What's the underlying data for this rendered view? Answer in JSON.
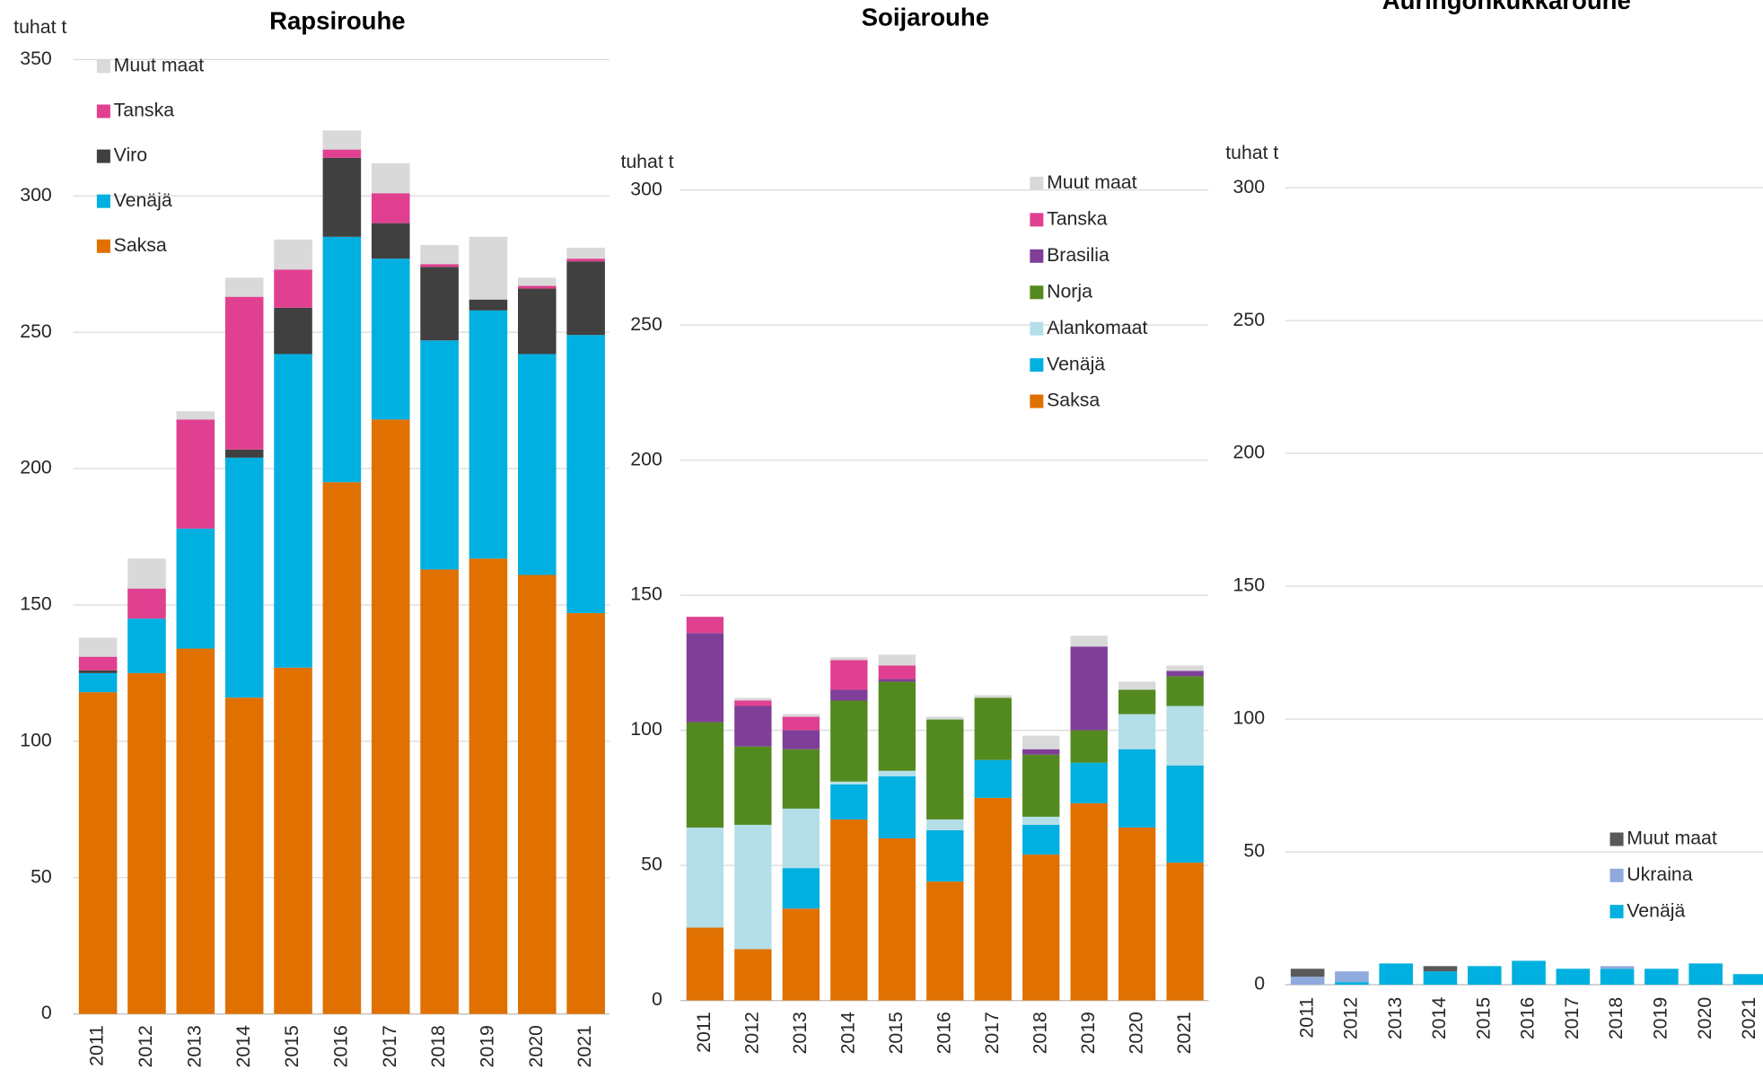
{
  "chart_data": [
    {
      "type": "bar",
      "stacked": true,
      "title": "Rapsirouhe",
      "y_label": "tuhat t",
      "categories": [
        "2011",
        "2012",
        "2013",
        "2014",
        "2015",
        "2016",
        "2017",
        "2018",
        "2019",
        "2020",
        "2021"
      ],
      "series": [
        {
          "name": "Saksa",
          "color": "#e07000",
          "values": [
            118,
            125,
            134,
            116,
            127,
            195,
            218,
            163,
            167,
            161,
            147
          ]
        },
        {
          "name": "Venäjä",
          "color": "#00b0e0",
          "values": [
            7,
            20,
            44,
            88,
            115,
            90,
            59,
            84,
            91,
            81,
            102
          ]
        },
        {
          "name": "Viro",
          "color": "#404040",
          "values": [
            1,
            0,
            0,
            3,
            17,
            29,
            13,
            27,
            4,
            24,
            27
          ]
        },
        {
          "name": "Tanska",
          "color": "#e0408f",
          "values": [
            5,
            11,
            40,
            56,
            14,
            3,
            11,
            1,
            0,
            1,
            1
          ]
        },
        {
          "name": "Muut maat",
          "color": "#d9d9d9",
          "values": [
            7,
            11,
            3,
            7,
            11,
            7,
            11,
            7,
            23,
            3,
            4
          ]
        }
      ],
      "ylim": [
        0,
        350
      ],
      "yticks": [
        0,
        50,
        100,
        150,
        200,
        250,
        300,
        350
      ],
      "grid": true
    },
    {
      "type": "bar",
      "stacked": true,
      "title": "Soijarouhe",
      "y_label": "tuhat t",
      "categories": [
        "2011",
        "2012",
        "2013",
        "2014",
        "2015",
        "2016",
        "2017",
        "2018",
        "2019",
        "2020",
        "2021"
      ],
      "series": [
        {
          "name": "Saksa",
          "color": "#e07000",
          "values": [
            27,
            19,
            34,
            67,
            60,
            44,
            75,
            54,
            73,
            64,
            51
          ]
        },
        {
          "name": "Venäjä",
          "color": "#00b0e0",
          "values": [
            0,
            0,
            15,
            13,
            23,
            19,
            14,
            11,
            15,
            29,
            36
          ]
        },
        {
          "name": "Alankomaat",
          "color": "#b4dfe8",
          "values": [
            37,
            46,
            22,
            1,
            2,
            4,
            0,
            3,
            0,
            13,
            22
          ]
        },
        {
          "name": "Norja",
          "color": "#538a1f",
          "values": [
            39,
            29,
            22,
            30,
            33,
            37,
            23,
            23,
            12,
            9,
            11
          ]
        },
        {
          "name": "Brasilia",
          "color": "#7f3f98",
          "values": [
            33,
            15,
            7,
            4,
            1,
            0,
            0,
            2,
            31,
            0,
            2
          ]
        },
        {
          "name": "Tanska",
          "color": "#e0408f",
          "values": [
            6,
            2,
            5,
            11,
            5,
            0,
            0,
            0,
            0,
            0,
            0
          ]
        },
        {
          "name": "Muut maat",
          "color": "#d9d9d9",
          "values": [
            0,
            1,
            1,
            1,
            4,
            1,
            1,
            5,
            4,
            3,
            2
          ]
        }
      ],
      "ylim": [
        0,
        300
      ],
      "yticks": [
        0,
        50,
        100,
        150,
        200,
        250,
        300
      ],
      "grid": true
    },
    {
      "type": "bar",
      "stacked": true,
      "title": "Auringonkukkarouhe",
      "y_label": "tuhat t",
      "categories": [
        "2011",
        "2012",
        "2013",
        "2014",
        "2015",
        "2016",
        "2017",
        "2018",
        "2019",
        "2020",
        "2021"
      ],
      "series": [
        {
          "name": "Venäjä",
          "color": "#00b0e0",
          "values": [
            0,
            1,
            8,
            5,
            7,
            9,
            6,
            6,
            6,
            8,
            4
          ]
        },
        {
          "name": "Ukraina",
          "color": "#8faadc",
          "values": [
            3,
            4,
            0,
            0,
            0,
            0,
            0,
            1,
            0,
            0,
            0
          ]
        },
        {
          "name": "Muut maat",
          "color": "#595959",
          "values": [
            3,
            0,
            0,
            2,
            0,
            0,
            0,
            0,
            0,
            0,
            0
          ]
        }
      ],
      "ylim": [
        0,
        300
      ],
      "yticks": [
        0,
        50,
        100,
        150,
        200,
        250,
        300
      ],
      "grid": true
    }
  ]
}
